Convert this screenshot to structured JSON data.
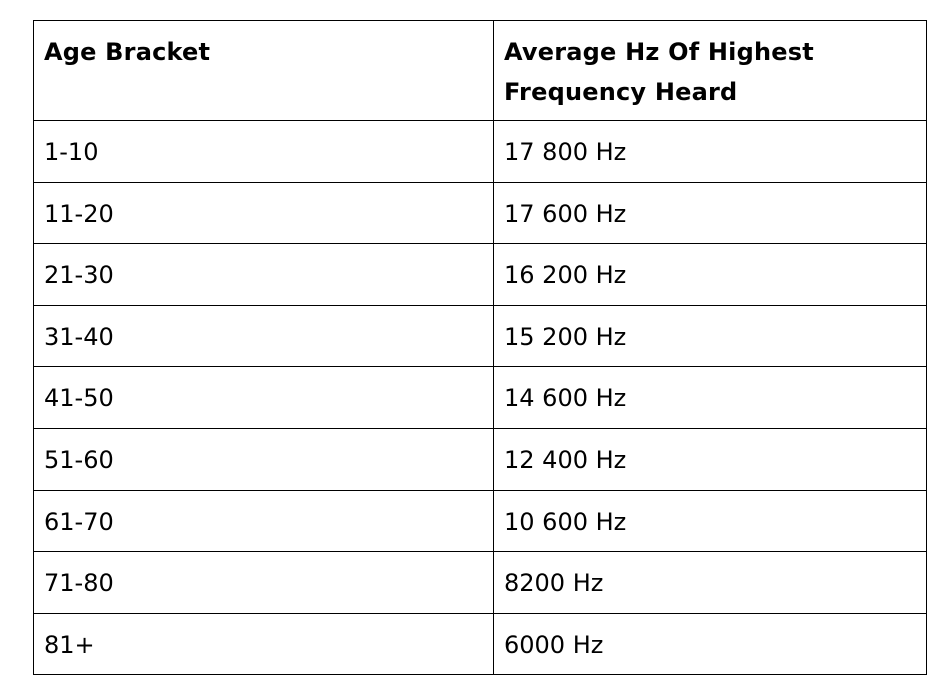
{
  "table": {
    "headers": {
      "age": "Age Bracket",
      "hz": "Average Hz Of Highest Frequency Heard"
    },
    "rows": [
      {
        "age": "1-10",
        "hz": "17 800 Hz"
      },
      {
        "age": "11-20",
        "hz": "17 600 Hz"
      },
      {
        "age": "21-30",
        "hz": "16 200 Hz"
      },
      {
        "age": "31-40",
        "hz": "15 200 Hz"
      },
      {
        "age": "41-50",
        "hz": "14 600 Hz"
      },
      {
        "age": "51-60",
        "hz": "12 400 Hz"
      },
      {
        "age": "61-70",
        "hz": "10 600 Hz"
      },
      {
        "age": "71-80",
        "hz": "8200 Hz"
      },
      {
        "age": "81+",
        "hz": "6000 Hz"
      }
    ]
  },
  "colors": {
    "border": "#000000",
    "text": "#000000",
    "background": "#ffffff"
  }
}
